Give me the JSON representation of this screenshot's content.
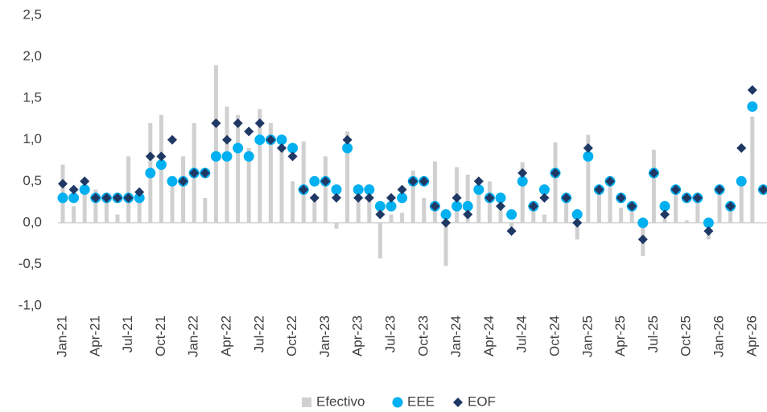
{
  "chart_data": {
    "type": "bar_scatter",
    "categories": [
      "Jan-21",
      null,
      null,
      "Apr-21",
      null,
      null,
      "Jul-21",
      null,
      null,
      "Oct-21",
      null,
      null,
      "Jan-22",
      null,
      null,
      "Apr-22",
      null,
      null,
      "Jul-22",
      null,
      null,
      "Oct-22",
      null,
      null,
      "Jan-23",
      null,
      null,
      "Apr-23",
      null,
      null,
      "Jul-23",
      null,
      null,
      "Oct-23",
      null,
      null,
      "Jan-24",
      null,
      null,
      "Apr-24",
      null,
      null,
      "Jul-24",
      null,
      null,
      "Oct-24",
      null,
      null,
      "Jan-25",
      null,
      null,
      "Apr-25",
      null,
      null,
      "Jul-25",
      null,
      null,
      "Oct-25",
      null,
      null,
      "Jan-26",
      null,
      null,
      "Apr-26",
      null
    ],
    "series": [
      {
        "name": "Efectivo",
        "kind": "bar",
        "color": "#d0d0d0",
        "values": [
          0.7,
          0.2,
          0.45,
          0.4,
          0.3,
          0.1,
          0.8,
          0.3,
          1.2,
          1.3,
          0.5,
          0.8,
          1.2,
          0.3,
          1.9,
          1.4,
          1.3,
          0.9,
          1.37,
          1.2,
          1.0,
          0.5,
          0.98,
          0.3,
          0.8,
          -0.07,
          1.1,
          0.4,
          0.3,
          -0.43,
          0.1,
          0.12,
          0.63,
          0.3,
          0.74,
          -0.52,
          0.67,
          0.58,
          0.45,
          0.5,
          0.2,
          -0.05,
          0.73,
          0.2,
          0.1,
          0.97,
          0.3,
          -0.2,
          1.06,
          0.4,
          0.5,
          0.18,
          0.2,
          -0.4,
          0.88,
          0.05,
          0.4,
          0.03,
          0.3,
          -0.2,
          0.4,
          0.2,
          0.5,
          1.28,
          null
        ]
      },
      {
        "name": "EEE",
        "kind": "circle",
        "color": "#00b0f0",
        "values": [
          0.3,
          0.3,
          0.4,
          0.3,
          0.3,
          0.3,
          0.3,
          0.3,
          0.6,
          0.7,
          0.5,
          0.5,
          0.6,
          0.6,
          0.8,
          0.8,
          0.9,
          0.8,
          1.0,
          1.0,
          1.0,
          0.9,
          0.4,
          0.5,
          0.5,
          0.4,
          0.9,
          0.4,
          0.4,
          0.2,
          0.2,
          0.3,
          0.5,
          0.5,
          0.2,
          0.1,
          0.2,
          0.2,
          0.4,
          0.3,
          0.3,
          0.1,
          0.5,
          0.2,
          0.4,
          0.6,
          0.3,
          0.1,
          0.8,
          0.4,
          0.5,
          0.3,
          0.2,
          0.0,
          0.6,
          0.2,
          0.4,
          0.3,
          0.3,
          0.0,
          0.4,
          0.2,
          0.5,
          1.4,
          0.4
        ]
      },
      {
        "name": "EOF",
        "kind": "diamond",
        "color": "#1f3864",
        "values": [
          0.47,
          0.4,
          0.5,
          0.3,
          0.3,
          0.3,
          0.3,
          0.37,
          0.8,
          0.8,
          1.0,
          0.5,
          0.6,
          0.6,
          1.2,
          1.0,
          1.2,
          1.1,
          1.2,
          1.0,
          0.9,
          0.8,
          0.4,
          0.3,
          0.5,
          0.3,
          1.0,
          0.3,
          0.3,
          0.1,
          0.3,
          0.4,
          0.5,
          0.5,
          0.2,
          0.0,
          0.3,
          0.1,
          0.5,
          0.3,
          0.2,
          -0.1,
          0.6,
          0.2,
          0.3,
          0.6,
          0.3,
          0.0,
          0.9,
          0.4,
          0.5,
          0.3,
          0.2,
          -0.2,
          0.6,
          0.1,
          0.4,
          0.3,
          0.3,
          -0.1,
          0.4,
          0.2,
          0.9,
          1.6,
          0.4
        ]
      }
    ],
    "ylim": [
      -1.0,
      2.5
    ],
    "yticks": [
      {
        "value": -1.0,
        "label": "-1,0"
      },
      {
        "value": -0.5,
        "label": "-0,5"
      },
      {
        "value": 0,
        "label": "0,0"
      },
      {
        "value": 0.5,
        "label": "0,5"
      },
      {
        "value": 1.0,
        "label": "1,0"
      },
      {
        "value": 1.5,
        "label": "1,5"
      },
      {
        "value": 2.0,
        "label": "2,0"
      },
      {
        "value": 2.5,
        "label": "2,5"
      }
    ],
    "grid": false,
    "legend": "bottom"
  }
}
